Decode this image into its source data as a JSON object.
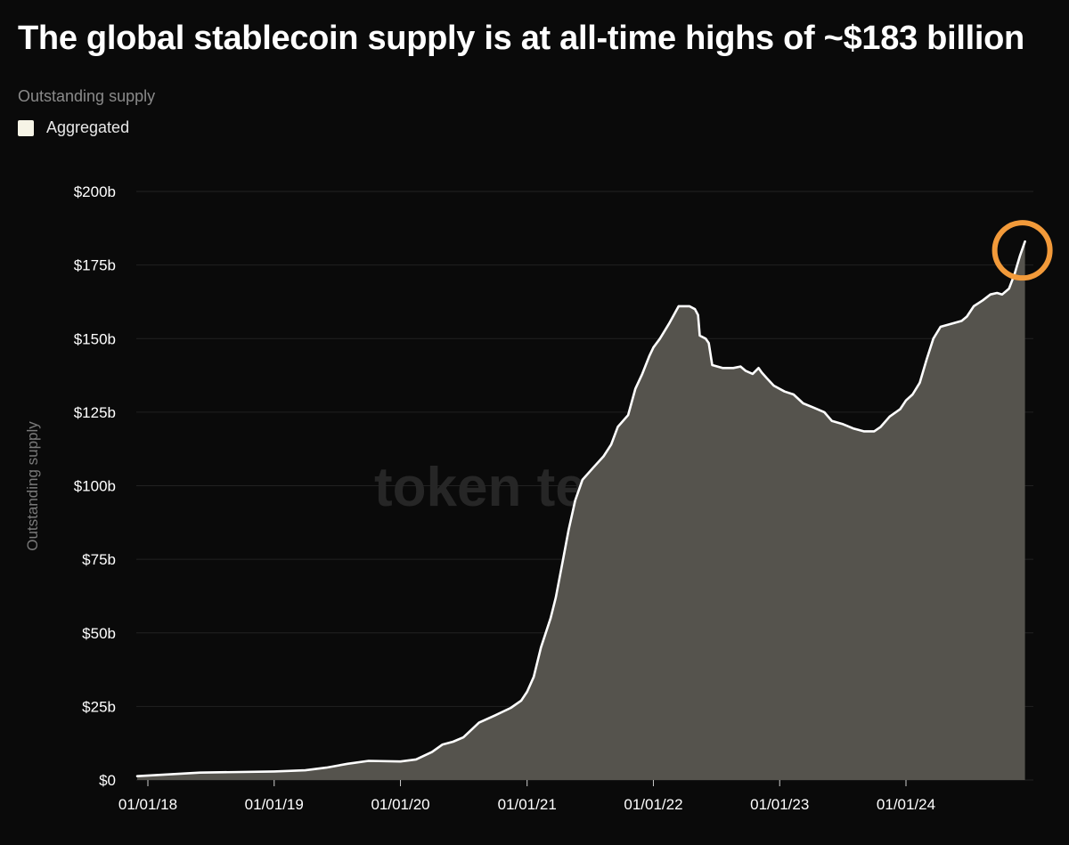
{
  "header": {
    "title": "The global stablecoin supply is at all-time highs of ~$183 billion",
    "subtitle": "Outstanding supply"
  },
  "legend": {
    "items": [
      {
        "label": "Aggregated",
        "color": "#f6f4e6"
      }
    ]
  },
  "watermark": "token terminal_",
  "colors": {
    "background": "#0a0a0a",
    "line": "#ffffff",
    "area": "#55534d",
    "grid": "#222222",
    "highlight_circle": "#f29a3a"
  },
  "chart_data": {
    "type": "area",
    "title": "The global stablecoin supply is at all-time highs of ~$183 billion",
    "ylabel": "Outstanding supply",
    "xlabel": "",
    "ylim": [
      0,
      200
    ],
    "y_ticks": [
      0,
      25,
      50,
      75,
      100,
      125,
      150,
      175,
      200
    ],
    "y_tick_labels": [
      "$0",
      "$25b",
      "$50b",
      "$75b",
      "$100b",
      "$125b",
      "$150b",
      "$175b",
      "$200b"
    ],
    "x_ticks": [
      "2018-01-01",
      "2019-01-01",
      "2020-01-01",
      "2021-01-01",
      "2022-01-01",
      "2023-01-01",
      "2024-01-01"
    ],
    "x_tick_labels": [
      "01/01/18",
      "01/01/19",
      "01/01/20",
      "01/01/21",
      "01/01/22",
      "01/01/23",
      "01/01/24"
    ],
    "xlim": [
      "2017-12-01",
      "2024-12-10"
    ],
    "grid": true,
    "legend_position": "top-left",
    "series": [
      {
        "name": "Aggregated",
        "points": [
          [
            "2017-12-01",
            1.3
          ],
          [
            "2018-06-01",
            2.5
          ],
          [
            "2019-01-01",
            2.9
          ],
          [
            "2019-04-01",
            3.3
          ],
          [
            "2019-06-01",
            4.2
          ],
          [
            "2019-08-01",
            5.5
          ],
          [
            "2019-10-01",
            6.5
          ],
          [
            "2020-01-01",
            6.3
          ],
          [
            "2020-02-15",
            7.0
          ],
          [
            "2020-04-01",
            9.5
          ],
          [
            "2020-05-01",
            12.0
          ],
          [
            "2020-06-01",
            13.0
          ],
          [
            "2020-07-01",
            14.5
          ],
          [
            "2020-08-15",
            19.5
          ],
          [
            "2020-10-01",
            22.0
          ],
          [
            "2020-11-15",
            24.5
          ],
          [
            "2020-12-15",
            27.0
          ],
          [
            "2021-01-01",
            30.0
          ],
          [
            "2021-01-20",
            35.0
          ],
          [
            "2021-02-10",
            45.0
          ],
          [
            "2021-03-10",
            55.0
          ],
          [
            "2021-03-25",
            62.0
          ],
          [
            "2021-04-15",
            75.0
          ],
          [
            "2021-05-01",
            85.0
          ],
          [
            "2021-05-20",
            95.0
          ],
          [
            "2021-06-10",
            102.0
          ],
          [
            "2021-07-10",
            106.0
          ],
          [
            "2021-08-10",
            110.0
          ],
          [
            "2021-09-01",
            114.0
          ],
          [
            "2021-09-20",
            120.0
          ],
          [
            "2021-10-20",
            124.0
          ],
          [
            "2021-11-10",
            133.0
          ],
          [
            "2021-11-30",
            138.0
          ],
          [
            "2021-12-20",
            144.0
          ],
          [
            "2022-01-01",
            147.0
          ],
          [
            "2022-01-20",
            150.0
          ],
          [
            "2022-02-15",
            155.0
          ],
          [
            "2022-03-01",
            158.0
          ],
          [
            "2022-03-15",
            161.0
          ],
          [
            "2022-04-15",
            161.0
          ],
          [
            "2022-05-01",
            160.0
          ],
          [
            "2022-05-10",
            158.0
          ],
          [
            "2022-05-15",
            151.0
          ],
          [
            "2022-06-01",
            150.0
          ],
          [
            "2022-06-10",
            148.5
          ],
          [
            "2022-06-20",
            141.0
          ],
          [
            "2022-07-20",
            140.0
          ],
          [
            "2022-08-20",
            140.0
          ],
          [
            "2022-09-10",
            140.5
          ],
          [
            "2022-09-25",
            139.0
          ],
          [
            "2022-10-15",
            138.0
          ],
          [
            "2022-11-01",
            140.0
          ],
          [
            "2022-11-10",
            138.5
          ],
          [
            "2022-11-25",
            136.5
          ],
          [
            "2022-12-15",
            134.0
          ],
          [
            "2023-01-15",
            132.0
          ],
          [
            "2023-02-10",
            131.0
          ],
          [
            "2023-03-10",
            128.0
          ],
          [
            "2023-04-10",
            126.5
          ],
          [
            "2023-05-10",
            125.0
          ],
          [
            "2023-06-01",
            122.0
          ],
          [
            "2023-07-01",
            121.0
          ],
          [
            "2023-08-01",
            119.5
          ],
          [
            "2023-09-01",
            118.5
          ],
          [
            "2023-10-01",
            118.5
          ],
          [
            "2023-10-20",
            120.0
          ],
          [
            "2023-11-15",
            123.5
          ],
          [
            "2023-12-15",
            126.0
          ],
          [
            "2024-01-01",
            129.0
          ],
          [
            "2024-01-20",
            131.0
          ],
          [
            "2024-02-10",
            135.0
          ],
          [
            "2024-03-01",
            143.0
          ],
          [
            "2024-03-20",
            150.0
          ],
          [
            "2024-04-10",
            154.0
          ],
          [
            "2024-05-10",
            155.0
          ],
          [
            "2024-06-10",
            156.0
          ],
          [
            "2024-06-25",
            157.5
          ],
          [
            "2024-07-15",
            161.0
          ],
          [
            "2024-08-10",
            163.0
          ],
          [
            "2024-09-01",
            165.0
          ],
          [
            "2024-09-20",
            165.5
          ],
          [
            "2024-10-05",
            165.0
          ],
          [
            "2024-10-25",
            167.0
          ],
          [
            "2024-11-10",
            172.0
          ],
          [
            "2024-11-25",
            178.0
          ],
          [
            "2024-12-10",
            183.0
          ]
        ]
      }
    ]
  }
}
